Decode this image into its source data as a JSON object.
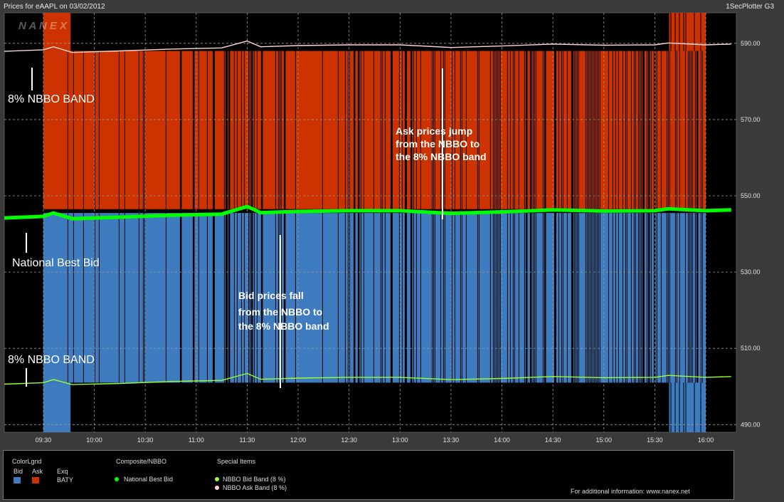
{
  "header": {
    "title": "Prices for  eAAPL  on  03/02/2012",
    "tool": "1SecPlotter G3",
    "watermark": "N A N E X"
  },
  "colors": {
    "bid": "#3f7bbf",
    "ask": "#cc3300",
    "nbb": "#00ff00",
    "bid_band": "#99ff33",
    "ask_band": "#ffd6d6"
  },
  "chart_data": {
    "type": "line",
    "x_ticks": [
      "09:30",
      "10:00",
      "10:30",
      "11:00",
      "11:30",
      "12:00",
      "12:30",
      "13:00",
      "13:30",
      "14:00",
      "14:30",
      "15:00",
      "15:30",
      "16:00"
    ],
    "y_ticks": [
      "590.00",
      "570.00",
      "550.00",
      "530.00",
      "510.00",
      "490.00"
    ],
    "ylim": [
      488,
      598
    ],
    "grid": true,
    "series": [
      {
        "name": "National Best Bid",
        "x": [
          "09:07",
          "09:30",
          "09:36",
          "09:47",
          "10:15",
          "10:45",
          "11:15",
          "11:30",
          "11:38",
          "12:00",
          "12:30",
          "13:00",
          "13:30",
          "14:00",
          "14:30",
          "15:00",
          "15:30",
          "15:38",
          "16:00",
          "16:15"
        ],
        "y": [
          544.2,
          544.6,
          545.5,
          544.0,
          544.4,
          544.9,
          545.2,
          547.2,
          545.6,
          545.9,
          546.1,
          546.1,
          545.4,
          545.8,
          546.3,
          546.0,
          546.1,
          546.6,
          546.1,
          546.3
        ]
      },
      {
        "name": "NBBO Bid Band (8 %)",
        "x": [
          "09:07",
          "09:30",
          "09:36",
          "09:47",
          "10:15",
          "10:45",
          "11:15",
          "11:30",
          "11:38",
          "12:00",
          "12:30",
          "13:00",
          "13:30",
          "14:00",
          "14:30",
          "15:00",
          "15:30",
          "15:38",
          "16:00",
          "16:15"
        ],
        "y": [
          500.6,
          501.0,
          501.8,
          500.5,
          500.8,
          501.3,
          501.6,
          503.4,
          501.9,
          502.2,
          502.4,
          502.4,
          501.8,
          502.1,
          502.6,
          502.3,
          502.4,
          502.9,
          502.4,
          502.6
        ]
      },
      {
        "name": "NBBO Ask Band (8 %)",
        "x": [
          "09:07",
          "09:30",
          "09:36",
          "09:47",
          "10:15",
          "10:45",
          "11:15",
          "11:30",
          "11:38",
          "12:00",
          "12:30",
          "13:00",
          "13:30",
          "14:00",
          "14:30",
          "15:00",
          "15:30",
          "15:38",
          "16:00",
          "16:15"
        ],
        "y": [
          587.9,
          588.3,
          589.1,
          587.6,
          588.0,
          588.5,
          588.8,
          590.6,
          589.1,
          589.4,
          589.6,
          589.6,
          588.9,
          589.3,
          589.8,
          589.5,
          589.6,
          590.1,
          589.6,
          589.8
        ]
      }
    ],
    "regions": [
      {
        "name": "Ask",
        "from": "09:30",
        "to": "16:00",
        "y_from": 546.5,
        "y_to": 588.0
      },
      {
        "name": "Bid",
        "from": "09:30",
        "to": "16:00",
        "y_from": 501.0,
        "y_to": 545.5
      }
    ],
    "annotations": {
      "ask_band_top": "8% NBBO BAND",
      "national_best_bid": "National Best Bid",
      "bid_band_bottom": "8% NBBO BAND",
      "ask_jump": [
        "Ask prices jump",
        "from the NBBO to",
        "the 8% NBBO band"
      ],
      "bid_fall": [
        "Bid prices fall",
        "from the NBBO to",
        "the 8% NBBO band"
      ]
    }
  },
  "legend": {
    "colorlgnd_title": "ColorLgnd",
    "bid_label": "Bid",
    "ask_label": "Ask",
    "exq_label": "Exq",
    "exchange": "BATY",
    "composite_title": "Composite/NBBO",
    "nbb_label": "National Best Bid",
    "special_title": "Special Items",
    "bid_band_label": "NBBO Bid Band (8 %)",
    "ask_band_label": "NBBO Ask Band (8 %)",
    "info": "For additional information: www.nanex.net"
  }
}
